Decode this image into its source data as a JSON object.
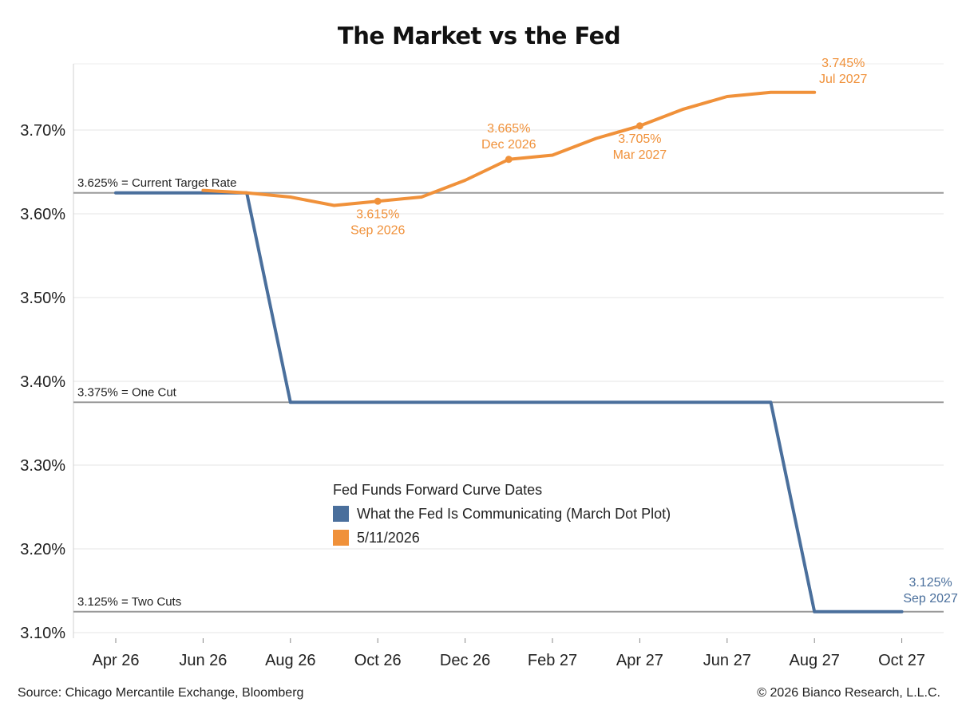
{
  "title": "The Market vs the Fed",
  "source": "Source: Chicago Mercantile Exchange, Bloomberg",
  "copyright": "© 2026 Bianco Research, L.L.C.",
  "colors": {
    "fed": "#4a6f9c",
    "market": "#f0913a",
    "reference": "#9a9a9a",
    "grid": "#e4e4e4"
  },
  "chart_data": {
    "type": "line",
    "title": "The Market vs the Fed",
    "xlabel": "",
    "ylabel": "",
    "x_ticks": [
      "Apr 26",
      "Jun 26",
      "Aug 26",
      "Oct 26",
      "Dec 26",
      "Feb 27",
      "Apr 27",
      "Jun 27",
      "Aug 27",
      "Oct 27"
    ],
    "xlim": [
      "2026-04",
      "2027-10"
    ],
    "y_ticks": [
      "3.10%",
      "3.20%",
      "3.30%",
      "3.40%",
      "3.50%",
      "3.60%",
      "3.70%"
    ],
    "ylim": [
      3.09,
      3.83
    ],
    "grid": "horizontal",
    "legend": {
      "title": "Fed Funds Forward Curve Dates",
      "placement": "center",
      "entries": [
        "What the Fed Is Communicating (March Dot Plot)",
        "5/11/2026"
      ]
    },
    "reference_lines": [
      {
        "y": 3.625,
        "label": "3.625% = Current Target Rate"
      },
      {
        "y": 3.375,
        "label": "3.375% = One Cut"
      },
      {
        "y": 3.125,
        "label": "3.125% = Two Cuts"
      }
    ],
    "series": [
      {
        "name": "What the Fed Is Communicating (March Dot Plot)",
        "points": [
          {
            "x": "2026-04",
            "y": 3.625
          },
          {
            "x": "2026-05",
            "y": 3.625
          },
          {
            "x": "2026-06",
            "y": 3.625
          },
          {
            "x": "2026-07",
            "y": 3.625
          },
          {
            "x": "2026-08",
            "y": 3.375
          },
          {
            "x": "2026-09",
            "y": 3.375
          },
          {
            "x": "2026-10",
            "y": 3.375
          },
          {
            "x": "2026-11",
            "y": 3.375
          },
          {
            "x": "2026-12",
            "y": 3.375
          },
          {
            "x": "2027-01",
            "y": 3.375
          },
          {
            "x": "2027-02",
            "y": 3.375
          },
          {
            "x": "2027-03",
            "y": 3.375
          },
          {
            "x": "2027-04",
            "y": 3.375
          },
          {
            "x": "2027-05",
            "y": 3.375
          },
          {
            "x": "2027-06",
            "y": 3.375
          },
          {
            "x": "2027-07",
            "y": 3.375
          },
          {
            "x": "2027-08",
            "y": 3.125
          },
          {
            "x": "2027-09",
            "y": 3.125
          },
          {
            "x": "2027-10",
            "y": 3.125
          }
        ]
      },
      {
        "name": "5/11/2026",
        "points": [
          {
            "x": "2026-06",
            "y": 3.628
          },
          {
            "x": "2026-07",
            "y": 3.625
          },
          {
            "x": "2026-08",
            "y": 3.62
          },
          {
            "x": "2026-09",
            "y": 3.61
          },
          {
            "x": "2026-10",
            "y": 3.615
          },
          {
            "x": "2026-11",
            "y": 3.62
          },
          {
            "x": "2026-12",
            "y": 3.64
          },
          {
            "x": "2027-01",
            "y": 3.665
          },
          {
            "x": "2027-02",
            "y": 3.67
          },
          {
            "x": "2027-03",
            "y": 3.69
          },
          {
            "x": "2027-04",
            "y": 3.705
          },
          {
            "x": "2027-05",
            "y": 3.725
          },
          {
            "x": "2027-06",
            "y": 3.74
          },
          {
            "x": "2027-07",
            "y": 3.745
          },
          {
            "x": "2027-08",
            "y": 3.745
          }
        ]
      }
    ],
    "annotations": [
      {
        "series": 1,
        "x": "2026-10",
        "y": 3.615,
        "lines": [
          "3.615%",
          "Sep 2026"
        ],
        "marker": true,
        "pos": "below"
      },
      {
        "series": 1,
        "x": "2027-01",
        "y": 3.665,
        "lines": [
          "3.665%",
          "Dec 2026"
        ],
        "marker": true,
        "pos": "above"
      },
      {
        "series": 1,
        "x": "2027-04",
        "y": 3.705,
        "lines": [
          "3.705%",
          "Mar 2027"
        ],
        "marker": true,
        "pos": "below"
      },
      {
        "series": 1,
        "x": "2027-08",
        "y": 3.745,
        "lines": [
          "3.745%",
          "Jul 2027"
        ],
        "marker": false,
        "pos": "above-right"
      },
      {
        "series": 0,
        "x": "2027-10",
        "y": 3.125,
        "lines": [
          "3.125%",
          "Sep 2027"
        ],
        "marker": false,
        "pos": "above-right"
      }
    ]
  }
}
